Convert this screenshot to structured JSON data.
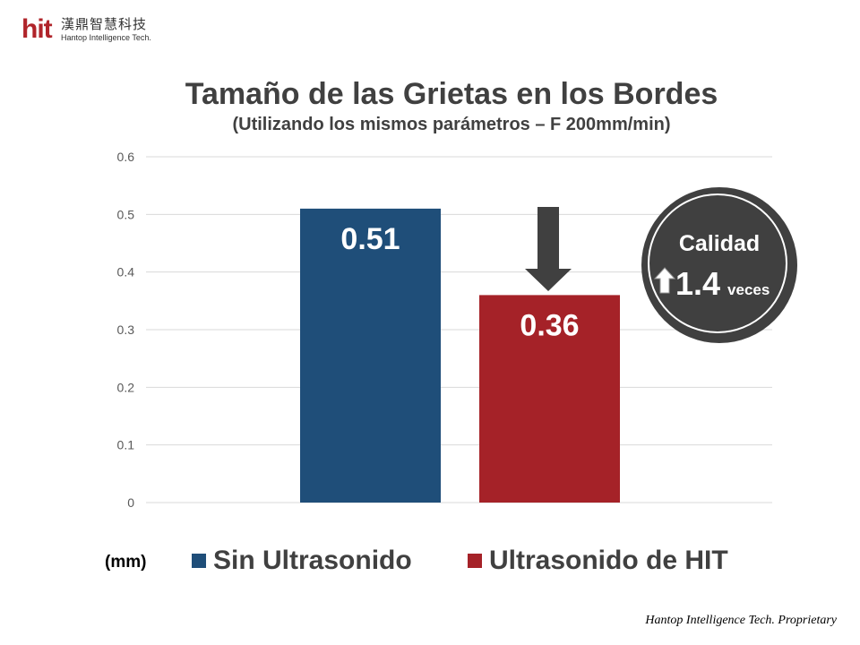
{
  "logo": {
    "mark": "hit",
    "chinese": "漢鼎智慧科技",
    "english": "Hantop Intelligence Tech."
  },
  "chart_data": {
    "type": "bar",
    "title": "Tamaño de las Grietas en los Bordes",
    "subtitle": "(Utilizando los mismos parámetros – F 200mm/min)",
    "ylabel": "(mm)",
    "ylim": [
      0,
      0.6
    ],
    "yticks": [
      "0",
      "0.1",
      "0.2",
      "0.3",
      "0.4",
      "0.5",
      "0.6"
    ],
    "grid": true,
    "legend_position": "bottom",
    "series": [
      {
        "name": "Sin Ultrasonido",
        "value": 0.51,
        "label": "0.51",
        "color": "#1f4e79"
      },
      {
        "name": "Ultrasonido de HIT",
        "value": 0.36,
        "label": "0.36",
        "color": "#a52228"
      }
    ],
    "annotation": {
      "line1": "Calidad",
      "value": "1.4",
      "unit": "veces",
      "icon": "up-arrow-icon",
      "down_arrow": "down-arrow-icon"
    }
  },
  "footer": "Hantop Intelligence Tech. Proprietary"
}
